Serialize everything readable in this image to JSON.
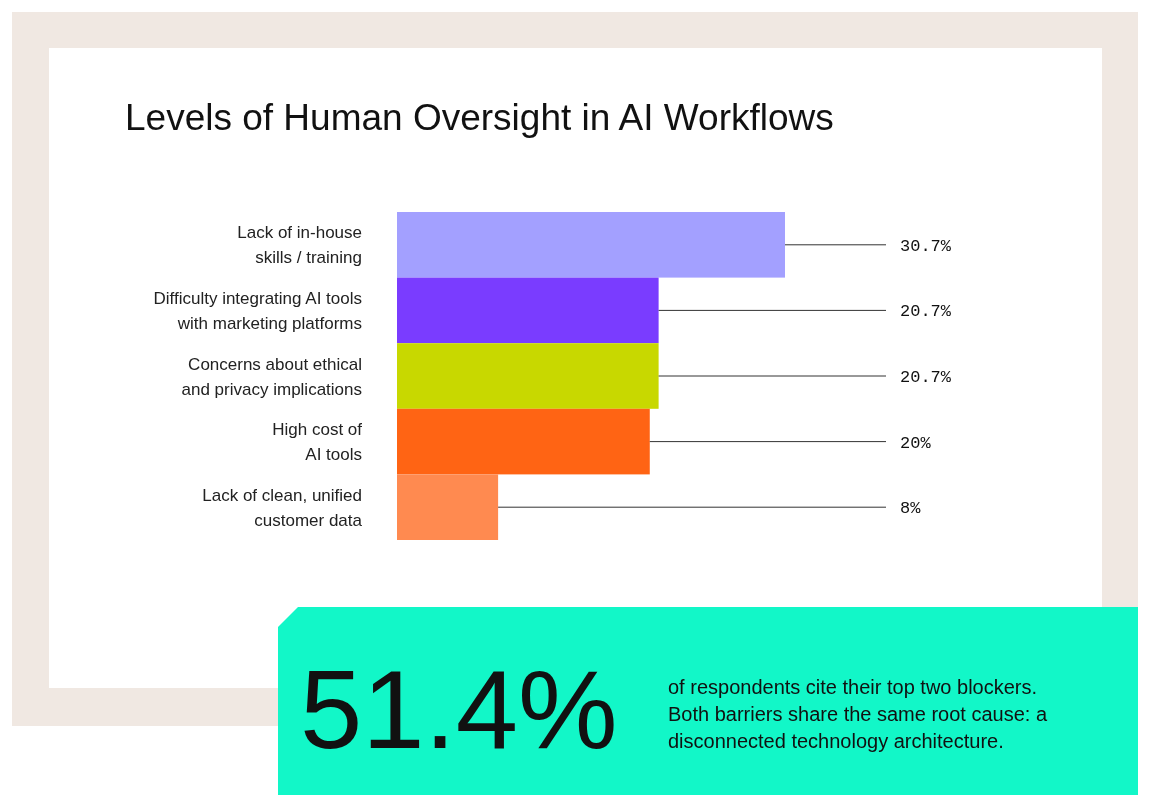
{
  "chart_data": {
    "type": "bar",
    "orientation": "horizontal",
    "title": "Levels of Human Oversight in AI Workflows",
    "categories": [
      "Lack of in-house\nskills / training",
      "Difficulty integrating AI tools\nwith marketing platforms",
      "Concerns about ethical\nand privacy implications",
      "High cost of\nAI tools",
      "Lack of clean, unified\ncustomer data"
    ],
    "values": [
      30.7,
      20.7,
      20.7,
      20,
      8
    ],
    "colors": [
      "#a3a0ff",
      "#7a3cff",
      "#c8d800",
      "#ff6414",
      "#ff8a50"
    ],
    "value_labels": [
      "30.7%",
      "20.7%",
      "20.7%",
      "20%",
      "8%"
    ],
    "annotations": [
      "51.4%",
      "of respondents cite their top two blockers.\nBoth barriers share the same root cause: a\ndisconnected technology architecture."
    ]
  }
}
